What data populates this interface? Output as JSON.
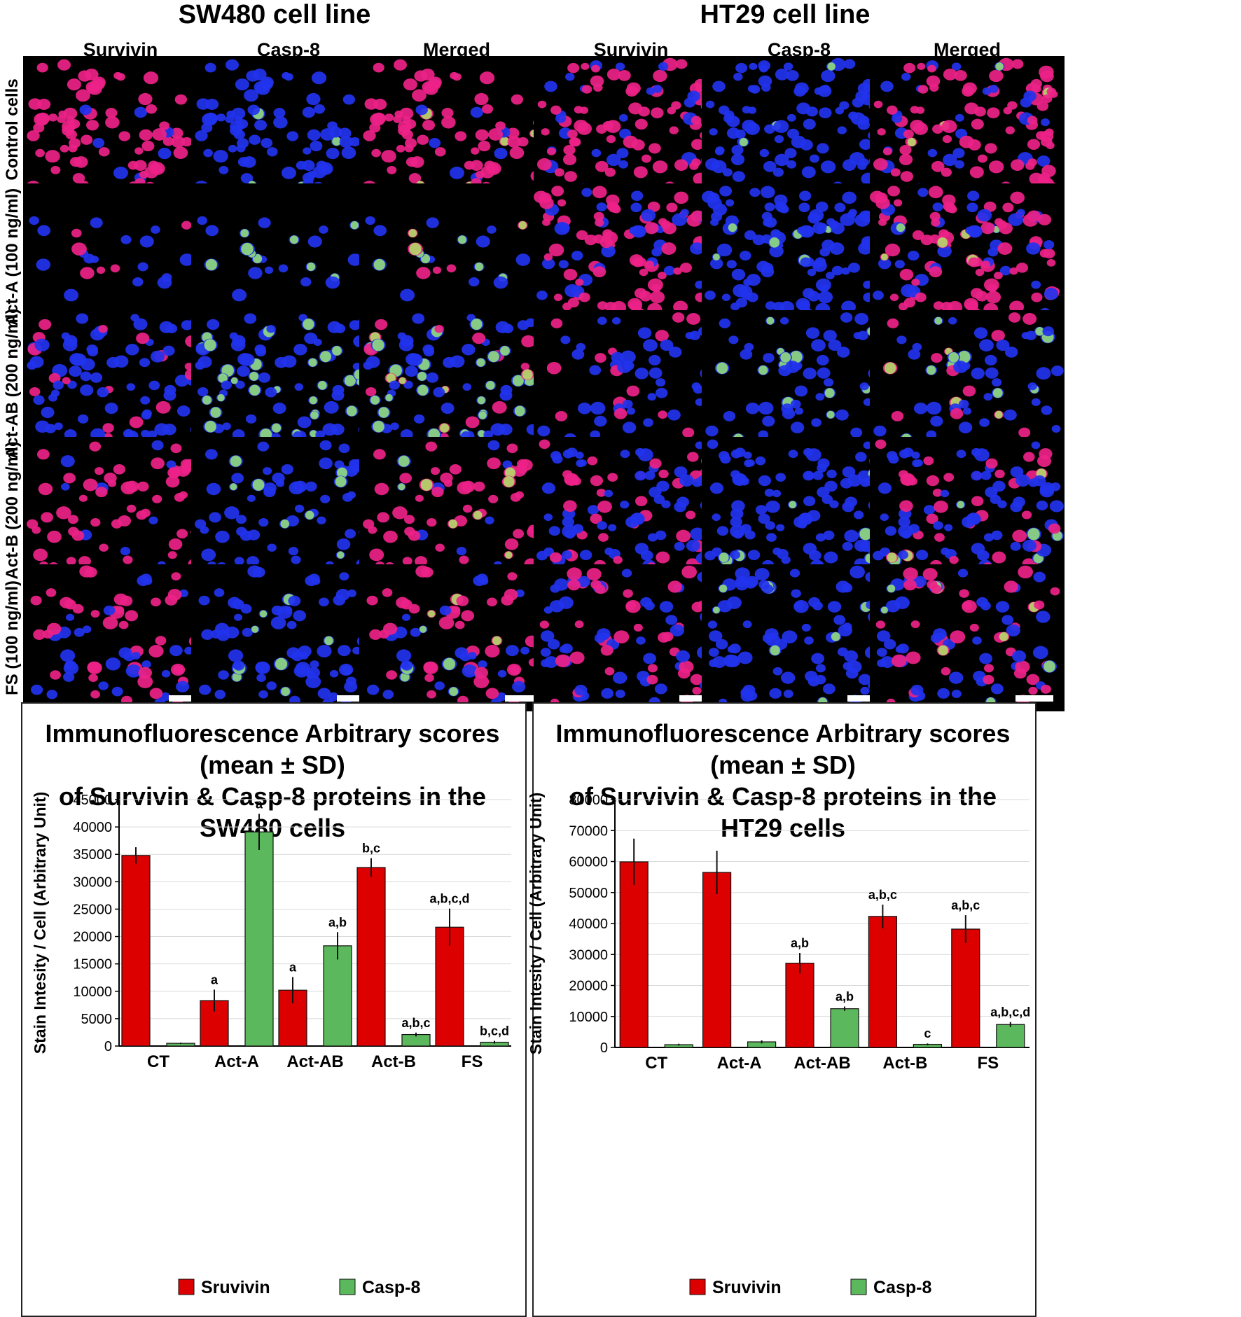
{
  "figure": {
    "cell_lines": [
      {
        "title": "SW480 cell line",
        "columns": [
          "Survivin",
          "Casp-8",
          "Merged"
        ]
      },
      {
        "title": "HT29 cell line",
        "columns": [
          "Survivin",
          "Casp-8",
          "Merged"
        ]
      }
    ],
    "rows": [
      "Control cells",
      "Act-A (100 ng/ml)",
      "Act-AB (200 ng/ml)",
      "Act-B (200 ng/ml)",
      "FS (100 ng/ml)"
    ],
    "colors": {
      "survivin": "#ee2288",
      "nucleus": "#2233ee",
      "casp8": "#aaff66",
      "bar_survivin": "#dd0000",
      "bar_casp8": "#5cb85c"
    }
  },
  "chart_data": [
    {
      "type": "bar",
      "title": "Immunofluorescence Arbitrary scores (mean ± SD) of Survivin & Casp-8 proteins in the SW480 cells",
      "title_lines": [
        "Immunofluorescence Arbitrary scores (mean ± SD)",
        "of Survivin & Casp-8 proteins in the SW480 cells"
      ],
      "xlabel": "",
      "ylabel": "Stain Intesity / Cell (Arbitrary Unit)",
      "ylim": [
        0,
        45000
      ],
      "yticks": [
        0,
        5000,
        10000,
        15000,
        20000,
        25000,
        30000,
        35000,
        40000,
        45000
      ],
      "categories": [
        "CT",
        "Act-A",
        "Act-AB",
        "Act-B",
        "FS"
      ],
      "series": [
        {
          "name": "Sruvivin",
          "values": [
            34800,
            8300,
            10200,
            32600,
            21700
          ],
          "errors": [
            1500,
            2000,
            2400,
            1700,
            3400
          ],
          "labels": [
            "",
            "a",
            "a",
            "b,c",
            "a,b,c,d"
          ]
        },
        {
          "name": "Casp-8",
          "values": [
            500,
            39100,
            18300,
            2100,
            700
          ],
          "errors": [
            120,
            3300,
            2500,
            350,
            250
          ],
          "labels": [
            "",
            "a",
            "a,b",
            "a,b,c",
            "b,c,d"
          ]
        }
      ],
      "legend": "bottom"
    },
    {
      "type": "bar",
      "title": "Immunofluorescence Arbitrary scores (mean ± SD) of Survivin & Casp-8 proteins in the HT29 cells",
      "title_lines": [
        "Immunofluorescence Arbitrary scores (mean ± SD)",
        "of Survivin & Casp-8 proteins in the HT29 cells"
      ],
      "xlabel": "",
      "ylabel": "Stain Intesity / Cell (Arbitrary Unit)",
      "ylim": [
        0,
        80000
      ],
      "yticks": [
        0,
        10000,
        20000,
        30000,
        40000,
        50000,
        60000,
        70000,
        80000
      ],
      "categories": [
        "CT",
        "Act-A",
        "Act-AB",
        "Act-B",
        "FS"
      ],
      "series": [
        {
          "name": "Sruvivin",
          "values": [
            59900,
            56500,
            27200,
            42300,
            38200
          ],
          "errors": [
            7500,
            7000,
            3300,
            3800,
            4500
          ],
          "labels": [
            "",
            "",
            "a,b",
            "a,b,c",
            "a,b,c"
          ]
        },
        {
          "name": "Casp-8",
          "values": [
            900,
            1800,
            12500,
            1000,
            7400
          ],
          "errors": [
            300,
            500,
            700,
            300,
            800
          ],
          "labels": [
            "",
            "",
            "a,b",
            "c",
            "a,b,c,d"
          ]
        }
      ],
      "legend": "bottom"
    }
  ]
}
